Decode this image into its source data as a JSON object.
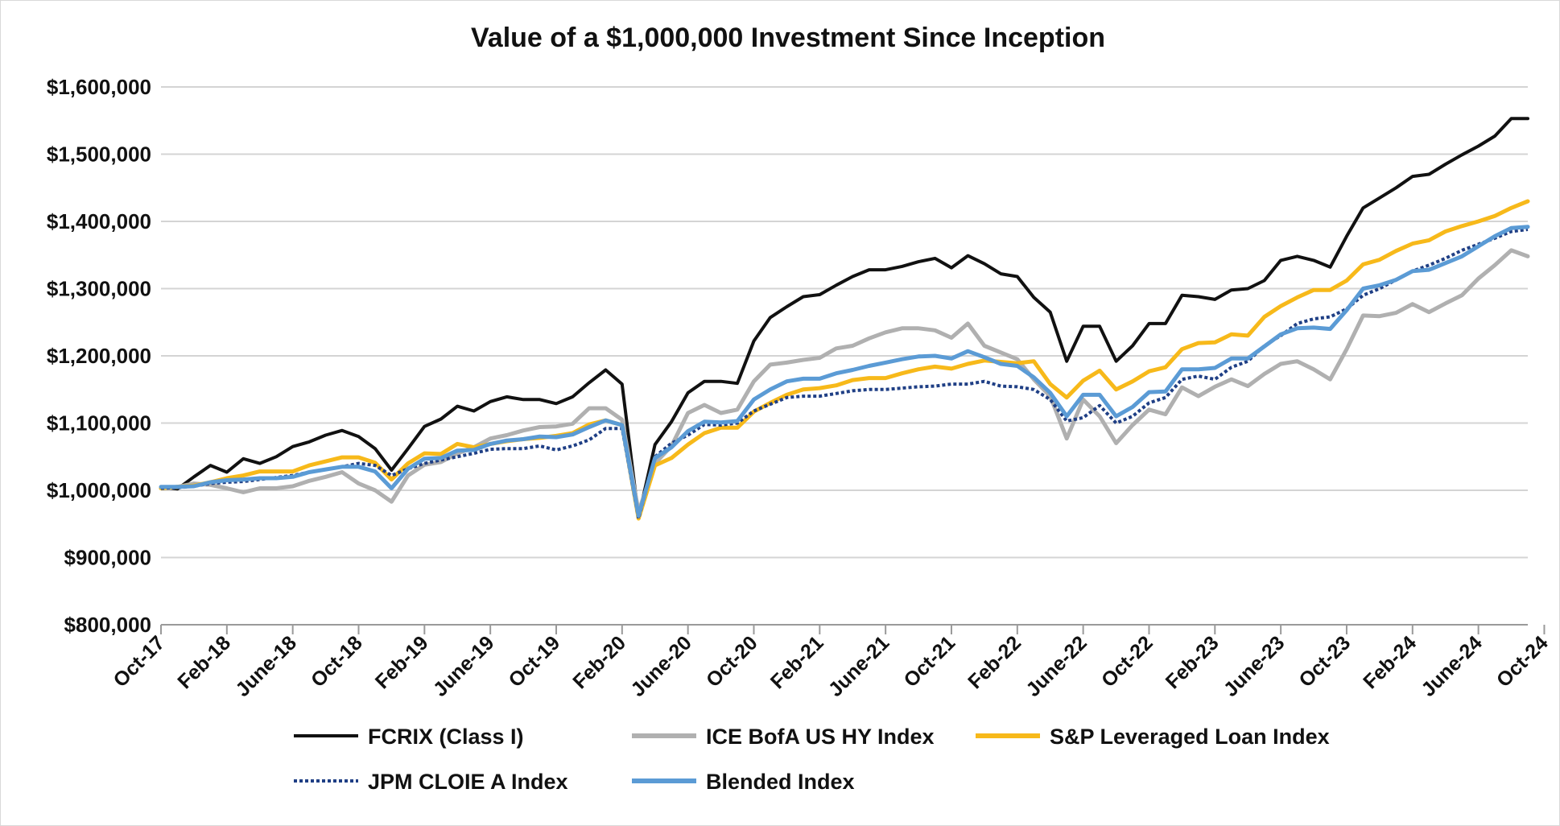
{
  "chart_data": {
    "type": "line",
    "title": "Value of a $1,000,000 Investment Since Inception",
    "xlabel": "",
    "ylabel": "",
    "ylim": [
      800000,
      1600000
    ],
    "yticks": [
      {
        "value": 1600000,
        "label": "$1,600,000"
      },
      {
        "value": 1500000,
        "label": "$1,500,000"
      },
      {
        "value": 1400000,
        "label": "$1,400,000"
      },
      {
        "value": 1300000,
        "label": "$1,300,000"
      },
      {
        "value": 1200000,
        "label": "$1,200,000"
      },
      {
        "value": 1100000,
        "label": "$1,100,000"
      },
      {
        "value": 1000000,
        "label": "$1,000,000"
      },
      {
        "value": 900000,
        "label": "$900,000"
      },
      {
        "value": 800000,
        "label": "$800,000"
      }
    ],
    "xticks": [
      {
        "index": 0,
        "label": "Oct-17"
      },
      {
        "index": 4,
        "label": "Feb-18"
      },
      {
        "index": 8,
        "label": "June-18"
      },
      {
        "index": 12,
        "label": "Oct-18"
      },
      {
        "index": 16,
        "label": "Feb-19"
      },
      {
        "index": 20,
        "label": "June-19"
      },
      {
        "index": 24,
        "label": "Oct-19"
      },
      {
        "index": 28,
        "label": "Feb-20"
      },
      {
        "index": 32,
        "label": "June-20"
      },
      {
        "index": 36,
        "label": "Oct-20"
      },
      {
        "index": 40,
        "label": "Feb-21"
      },
      {
        "index": 44,
        "label": "June-21"
      },
      {
        "index": 48,
        "label": "Oct-21"
      },
      {
        "index": 52,
        "label": "Feb-22"
      },
      {
        "index": 56,
        "label": "June-22"
      },
      {
        "index": 60,
        "label": "Oct-22"
      },
      {
        "index": 64,
        "label": "Feb-23"
      },
      {
        "index": 68,
        "label": "June-23"
      },
      {
        "index": 72,
        "label": "Oct-23"
      },
      {
        "index": 76,
        "label": "Feb-24"
      },
      {
        "index": 80,
        "label": "June-24"
      },
      {
        "index": 84,
        "label": "Oct-24"
      }
    ],
    "grid": true,
    "legend_position": "bottom",
    "series": [
      {
        "name": "FCRIX (Class I)",
        "color": "#111111",
        "style": "solid",
        "values": [
          1005000,
          1002000,
          1020000,
          1037000,
          1027000,
          1047000,
          1040000,
          1050000,
          1065000,
          1072000,
          1082000,
          1089000,
          1080000,
          1062000,
          1030000,
          1062000,
          1095000,
          1106000,
          1125000,
          1118000,
          1132000,
          1139000,
          1135000,
          1135000,
          1129000,
          1139000,
          1160000,
          1179000,
          1158000,
          960000,
          1068000,
          1102000,
          1145000,
          1162000,
          1162000,
          1159000,
          1222000,
          1257000,
          1273000,
          1288000,
          1291000,
          1305000,
          1318000,
          1328000,
          1328000,
          1333000,
          1340000,
          1345000,
          1331000,
          1349000,
          1337000,
          1322000,
          1318000,
          1287000,
          1265000,
          1192000,
          1244000,
          1244000,
          1192000,
          1215000,
          1248000,
          1248000,
          1290000,
          1288000,
          1284000,
          1298000,
          1300000,
          1312000,
          1342000,
          1348000,
          1342000,
          1332000,
          1378000,
          1420000,
          1435000,
          1450000,
          1467000,
          1470000,
          1485000,
          1499000,
          1512000,
          1527000,
          1553000,
          1553000
        ]
      },
      {
        "name": "ICE BofA US HY Index",
        "color": "#b0b0b0",
        "style": "solid",
        "values": [
          1003000,
          1005000,
          1010000,
          1008000,
          1003000,
          997000,
          1003000,
          1003000,
          1006000,
          1014000,
          1020000,
          1027000,
          1010000,
          1000000,
          983000,
          1022000,
          1038000,
          1042000,
          1055000,
          1064000,
          1077000,
          1082000,
          1089000,
          1094000,
          1095000,
          1099000,
          1122000,
          1122000,
          1105000,
          968000,
          1040000,
          1066000,
          1115000,
          1127000,
          1115000,
          1120000,
          1162000,
          1187000,
          1190000,
          1194000,
          1197000,
          1211000,
          1215000,
          1226000,
          1235000,
          1241000,
          1241000,
          1238000,
          1227000,
          1248000,
          1215000,
          1205000,
          1195000,
          1165000,
          1140000,
          1077000,
          1135000,
          1110000,
          1070000,
          1097000,
          1120000,
          1113000,
          1153000,
          1140000,
          1154000,
          1165000,
          1155000,
          1173000,
          1188000,
          1192000,
          1180000,
          1165000,
          1210000,
          1260000,
          1259000,
          1264000,
          1277000,
          1265000,
          1278000,
          1290000,
          1315000,
          1335000,
          1357000,
          1348000
        ]
      },
      {
        "name": "S&P Leveraged Loan Index",
        "color": "#f7b91a",
        "style": "solid",
        "values": [
          1003000,
          1005000,
          1007000,
          1012000,
          1018000,
          1022000,
          1028000,
          1028000,
          1028000,
          1037000,
          1043000,
          1049000,
          1049000,
          1041000,
          1016000,
          1040000,
          1055000,
          1054000,
          1069000,
          1064000,
          1069000,
          1073000,
          1076000,
          1078000,
          1081000,
          1085000,
          1098000,
          1104000,
          1097000,
          958000,
          1037000,
          1048000,
          1068000,
          1085000,
          1093000,
          1093000,
          1117000,
          1130000,
          1142000,
          1150000,
          1152000,
          1156000,
          1164000,
          1167000,
          1167000,
          1174000,
          1180000,
          1184000,
          1181000,
          1188000,
          1193000,
          1191000,
          1189000,
          1192000,
          1158000,
          1138000,
          1163000,
          1178000,
          1150000,
          1162000,
          1177000,
          1183000,
          1210000,
          1219000,
          1220000,
          1232000,
          1230000,
          1258000,
          1274000,
          1287000,
          1298000,
          1298000,
          1312000,
          1336000,
          1343000,
          1356000,
          1367000,
          1372000,
          1385000,
          1393000,
          1400000,
          1408000,
          1420000,
          1430000
        ]
      },
      {
        "name": "JPM CLOIE A Index",
        "color": "#1f3f85",
        "style": "dotted",
        "values": [
          1003000,
          1004000,
          1006000,
          1010000,
          1012000,
          1013000,
          1016000,
          1019000,
          1022000,
          1027000,
          1031000,
          1035000,
          1040000,
          1037000,
          1022000,
          1032000,
          1040000,
          1045000,
          1050000,
          1055000,
          1061000,
          1062000,
          1062000,
          1066000,
          1060000,
          1066000,
          1075000,
          1092000,
          1092000,
          958000,
          1050000,
          1070000,
          1082000,
          1098000,
          1097000,
          1100000,
          1118000,
          1128000,
          1138000,
          1140000,
          1140000,
          1144000,
          1148000,
          1150000,
          1150000,
          1152000,
          1154000,
          1155000,
          1158000,
          1158000,
          1162000,
          1155000,
          1154000,
          1150000,
          1135000,
          1103000,
          1108000,
          1126000,
          1100000,
          1110000,
          1130000,
          1138000,
          1165000,
          1170000,
          1165000,
          1183000,
          1192000,
          1215000,
          1230000,
          1248000,
          1255000,
          1258000,
          1270000,
          1290000,
          1300000,
          1313000,
          1326000,
          1335000,
          1345000,
          1357000,
          1366000,
          1375000,
          1385000,
          1388000
        ]
      },
      {
        "name": "Blended Index",
        "color": "#5b9bd5",
        "style": "solid",
        "values": [
          1005000,
          1005000,
          1006000,
          1012000,
          1015000,
          1016000,
          1018000,
          1018000,
          1020000,
          1027000,
          1031000,
          1035000,
          1035000,
          1028000,
          1003000,
          1032000,
          1047000,
          1048000,
          1059000,
          1060000,
          1069000,
          1074000,
          1076000,
          1080000,
          1079000,
          1083000,
          1094000,
          1104000,
          1097000,
          962000,
          1048000,
          1064000,
          1088000,
          1102000,
          1101000,
          1103000,
          1135000,
          1150000,
          1162000,
          1166000,
          1166000,
          1174000,
          1179000,
          1185000,
          1190000,
          1195000,
          1199000,
          1200000,
          1196000,
          1207000,
          1198000,
          1188000,
          1185000,
          1168000,
          1145000,
          1110000,
          1142000,
          1142000,
          1110000,
          1124000,
          1146000,
          1147000,
          1180000,
          1180000,
          1182000,
          1196000,
          1196000,
          1214000,
          1232000,
          1241000,
          1242000,
          1240000,
          1268000,
          1300000,
          1305000,
          1313000,
          1326000,
          1328000,
          1338000,
          1348000,
          1363000,
          1378000,
          1390000,
          1392000
        ]
      }
    ]
  }
}
